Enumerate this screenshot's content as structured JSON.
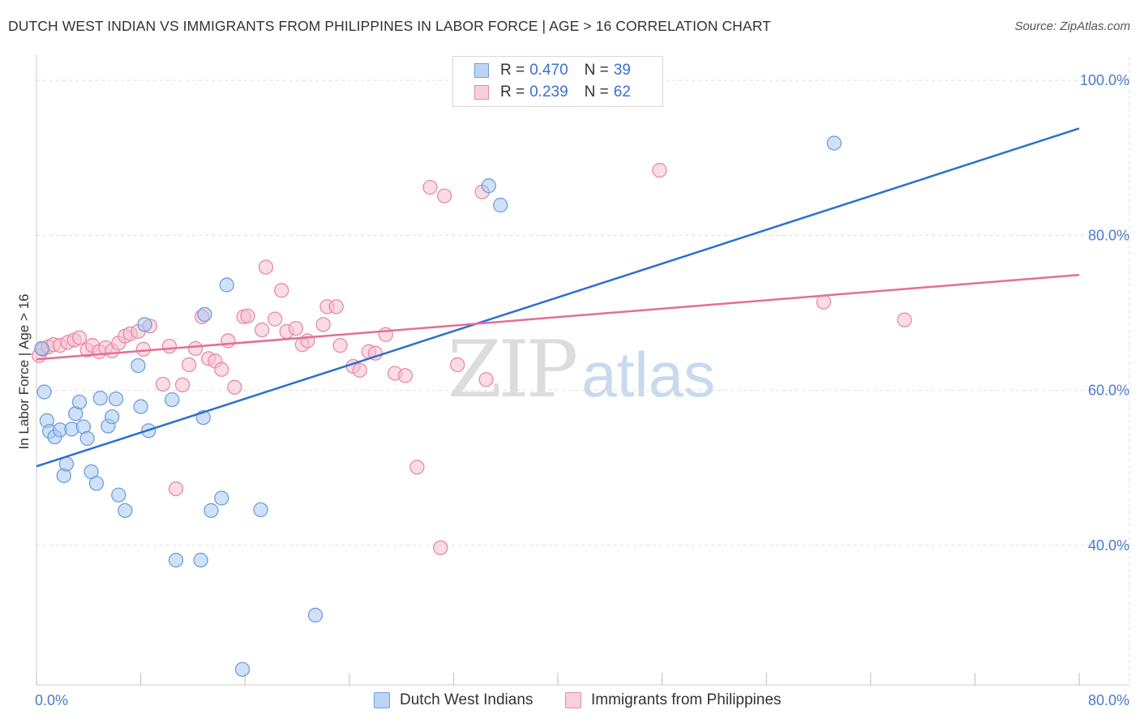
{
  "header": {
    "title": "DUTCH WEST INDIAN VS IMMIGRANTS FROM PHILIPPINES IN LABOR FORCE | AGE > 16 CORRELATION CHART",
    "source": "Source: ZipAtlas.com"
  },
  "watermark": {
    "zip": "ZIP",
    "atlas": "atlas"
  },
  "legend": {
    "rows": [
      {
        "r_label": "R =",
        "r_value": "0.470",
        "n_label": "N =",
        "n_value": "39"
      },
      {
        "r_label": "R =",
        "r_value": "0.239",
        "n_label": "N =",
        "n_value": "62"
      }
    ]
  },
  "bottom_legend": {
    "series1": "Dutch West Indians",
    "series2": "Immigrants from Philippines"
  },
  "colors": {
    "blue_fill": "#a9c8f0",
    "blue_stroke": "#6f9fdc",
    "blue_line": "#2d6fd0",
    "pink_fill": "#f6bfcf",
    "pink_stroke": "#e88aa6",
    "pink_line": "#e36e96",
    "grid": "#dddddd",
    "tick_text": "#4a7bd0"
  },
  "chart_data": {
    "type": "scatter",
    "title": "DUTCH WEST INDIAN VS IMMIGRANTS FROM PHILIPPINES IN LABOR FORCE | AGE > 16 CORRELATION CHART",
    "xlabel": "",
    "ylabel": "In Labor Force | Age > 16",
    "xlim": [
      0,
      80
    ],
    "ylim": [
      22,
      102
    ],
    "x_tick_labels": [
      "0.0%",
      "80.0%"
    ],
    "y_ticks": [
      40,
      60,
      80,
      100
    ],
    "y_tick_labels": [
      "40.0%",
      "60.0%",
      "80.0%",
      "100.0%"
    ],
    "series": [
      {
        "name": "Dutch West Indians",
        "R": 0.47,
        "N": 39,
        "trend": {
          "x": [
            0,
            80
          ],
          "y": [
            50.2,
            93.8
          ]
        },
        "points": [
          [
            0.4,
            65.4
          ],
          [
            0.6,
            59.8
          ],
          [
            0.8,
            56.1
          ],
          [
            1.0,
            54.7
          ],
          [
            1.4,
            54.0
          ],
          [
            1.8,
            54.9
          ],
          [
            2.1,
            49.0
          ],
          [
            2.3,
            50.5
          ],
          [
            2.7,
            55.0
          ],
          [
            3.0,
            57.0
          ],
          [
            3.3,
            58.5
          ],
          [
            3.6,
            55.3
          ],
          [
            3.9,
            53.8
          ],
          [
            4.2,
            49.5
          ],
          [
            4.6,
            48.0
          ],
          [
            4.9,
            59.0
          ],
          [
            5.5,
            55.4
          ],
          [
            5.8,
            56.6
          ],
          [
            6.1,
            58.9
          ],
          [
            6.3,
            46.5
          ],
          [
            6.8,
            44.5
          ],
          [
            7.8,
            63.2
          ],
          [
            8.0,
            57.9
          ],
          [
            8.3,
            68.5
          ],
          [
            8.6,
            54.8
          ],
          [
            10.4,
            58.8
          ],
          [
            10.7,
            38.1
          ],
          [
            12.6,
            38.1
          ],
          [
            12.8,
            56.5
          ],
          [
            12.9,
            69.8
          ],
          [
            13.4,
            44.5
          ],
          [
            14.2,
            46.1
          ],
          [
            14.6,
            73.6
          ],
          [
            15.8,
            24.0
          ],
          [
            17.2,
            44.6
          ],
          [
            21.4,
            31.0
          ],
          [
            34.7,
            86.4
          ],
          [
            35.6,
            83.9
          ],
          [
            61.2,
            91.9
          ]
        ]
      },
      {
        "name": "Immigrants from Philippines",
        "R": 0.239,
        "N": 62,
        "trend": {
          "x": [
            0,
            80
          ],
          "y": [
            64.0,
            74.9
          ]
        },
        "points": [
          [
            0.2,
            64.5
          ],
          [
            0.5,
            65.3
          ],
          [
            0.9,
            65.6
          ],
          [
            1.3,
            65.9
          ],
          [
            1.8,
            65.8
          ],
          [
            2.4,
            66.2
          ],
          [
            2.9,
            66.5
          ],
          [
            3.3,
            66.8
          ],
          [
            3.9,
            65.2
          ],
          [
            4.3,
            65.8
          ],
          [
            4.8,
            65.0
          ],
          [
            5.3,
            65.5
          ],
          [
            5.8,
            65.1
          ],
          [
            6.3,
            66.1
          ],
          [
            6.8,
            67.0
          ],
          [
            7.2,
            67.3
          ],
          [
            7.8,
            67.6
          ],
          [
            8.2,
            65.3
          ],
          [
            8.7,
            68.3
          ],
          [
            9.7,
            60.8
          ],
          [
            10.2,
            65.7
          ],
          [
            10.7,
            47.3
          ],
          [
            11.2,
            60.7
          ],
          [
            11.7,
            63.3
          ],
          [
            12.2,
            65.4
          ],
          [
            12.7,
            69.5
          ],
          [
            13.2,
            64.1
          ],
          [
            13.7,
            63.8
          ],
          [
            14.2,
            62.7
          ],
          [
            14.7,
            66.4
          ],
          [
            15.2,
            60.4
          ],
          [
            15.9,
            69.5
          ],
          [
            16.2,
            69.6
          ],
          [
            17.3,
            67.8
          ],
          [
            17.6,
            75.9
          ],
          [
            18.3,
            69.2
          ],
          [
            18.8,
            72.9
          ],
          [
            19.2,
            67.6
          ],
          [
            19.9,
            68.0
          ],
          [
            20.4,
            65.9
          ],
          [
            20.8,
            66.4
          ],
          [
            22.0,
            68.5
          ],
          [
            22.3,
            70.8
          ],
          [
            23.0,
            70.8
          ],
          [
            23.3,
            65.8
          ],
          [
            24.3,
            63.1
          ],
          [
            24.8,
            62.6
          ],
          [
            25.5,
            65.0
          ],
          [
            26.0,
            64.8
          ],
          [
            26.8,
            67.2
          ],
          [
            27.5,
            62.2
          ],
          [
            28.3,
            61.9
          ],
          [
            29.2,
            50.1
          ],
          [
            30.2,
            86.2
          ],
          [
            31.0,
            39.7
          ],
          [
            31.3,
            85.1
          ],
          [
            32.3,
            63.3
          ],
          [
            34.2,
            85.6
          ],
          [
            34.5,
            61.4
          ],
          [
            47.8,
            88.4
          ],
          [
            60.4,
            71.4
          ],
          [
            66.6,
            69.1
          ]
        ]
      }
    ]
  }
}
